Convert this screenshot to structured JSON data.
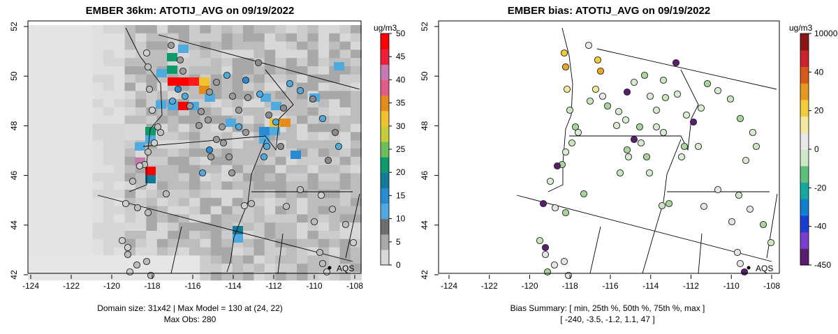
{
  "left_panel": {
    "title": "EMBER 36km: ATOTIJ_AVG on 09/19/2022",
    "caption_line1": "Domain size: 31x42 | Max Model = 130 at (24, 22)",
    "caption_line2": "Max Obs: 280",
    "legend_unit": "ug/m3",
    "legend_ticks": [
      "0",
      "5",
      "10",
      "15",
      "20",
      "25",
      "30",
      "35",
      "40",
      "45",
      "50"
    ],
    "legend_colors": [
      "#d9d9d9",
      "#a9a9a9",
      "#6e6e6e",
      "#4faae0",
      "#2a8bd0",
      "#137a9a",
      "#0f9a6e",
      "#6cbf5a",
      "#c8cc3a",
      "#f2c12e",
      "#e58a1c",
      "#e35a86",
      "#c87ab0",
      "#f0203a",
      "#ff0000"
    ],
    "station_label": "AQS"
  },
  "right_panel": {
    "title": "EMBER bias: ATOTIJ_AVG on 09/19/2022",
    "caption_line1": "Bias Summary: [ min, 25th %, 50th %, 75th %, max ]",
    "caption_line2": "[ -240,   -3.5,   -1.2,   1.1,   47 ]",
    "legend_unit": "ug/m3",
    "legend_ticks": [
      "-450",
      "-40",
      "-20",
      "0",
      "20",
      "40",
      "10000"
    ],
    "legend_colors": [
      "#5a1e70",
      "#7a3fd0",
      "#1a3fd0",
      "#0f7fd0",
      "#18a6a0",
      "#5cc07a",
      "#cfe8c4",
      "#e8e8e8",
      "#f5e9a0",
      "#f3cb3c",
      "#e8961c",
      "#d85a1a",
      "#c8242a",
      "#8b1414"
    ],
    "station_label": "AQS"
  },
  "axes": {
    "x_ticks": [
      "-124",
      "-122",
      "-120",
      "-118",
      "-116",
      "-114",
      "-112",
      "-110",
      "-108"
    ],
    "y_ticks": [
      "42",
      "44",
      "46",
      "48",
      "50",
      "52"
    ]
  }
}
